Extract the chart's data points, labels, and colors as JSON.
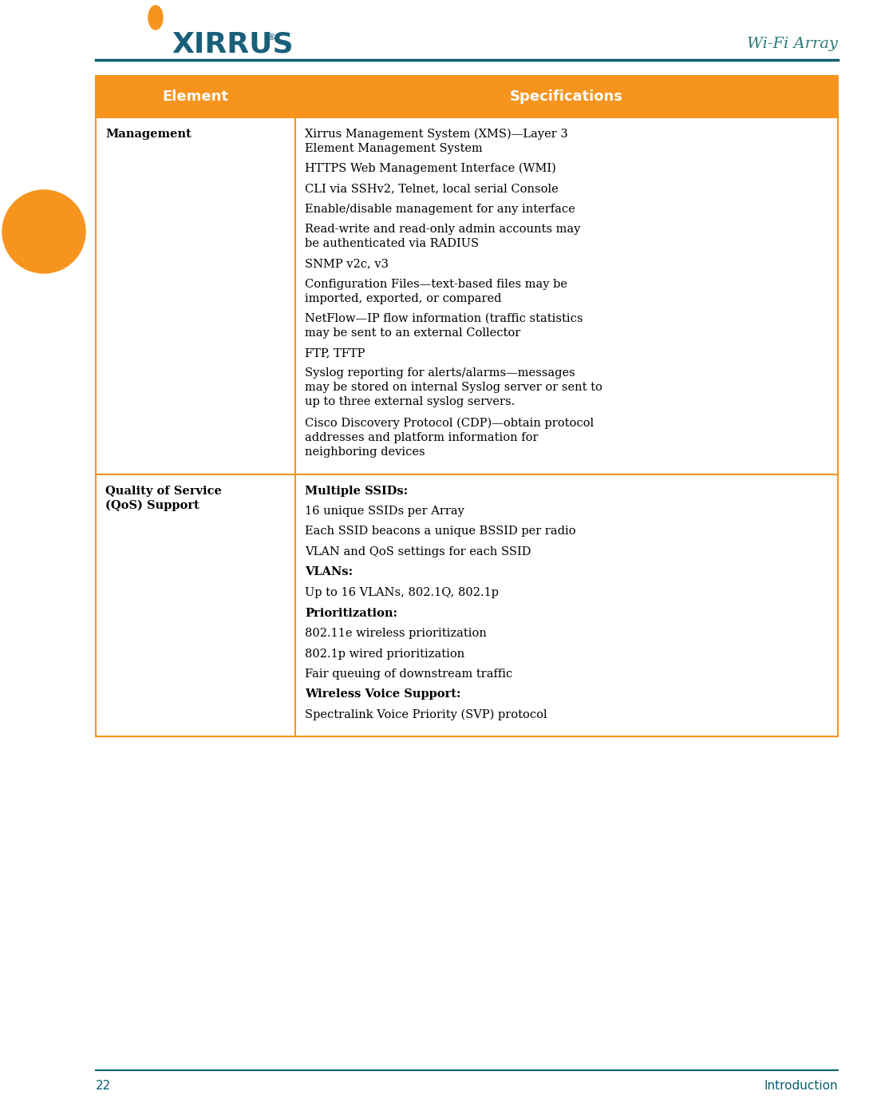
{
  "page_bg": "#ffffff",
  "header_line_color": "#0a5f6e",
  "header_text": "Wi-Fi Array",
  "header_text_color": "#2a7a7a",
  "page_number": "22",
  "footer_text": "Introduction",
  "footer_color": "#0a5f6e",
  "logo_color": "#1a5f7a",
  "orange_accent": "#f7941d",
  "table_border_color": "#f7941d",
  "table_header_bg": "#f7941d",
  "table_header_text_color": "#ffffff",
  "col1_header": "Element",
  "col2_header": "Specifications",
  "row1_label": "Management",
  "row1_specs": [
    "Xirrus Management System (XMS)—Layer 3\nElement Management System",
    "HTTPS Web Management Interface (WMI)",
    "CLI via SSHv2, Telnet, local serial Console",
    "Enable/disable management for any interface",
    "Read-write and read-only admin accounts may\nbe authenticated via RADIUS",
    "SNMP v2c, v3",
    "Configuration Files—text-based files may be\nimported, exported, or compared",
    "NetFlow—IP flow information (traffic statistics\nmay be sent to an external Collector",
    "FTP, TFTP",
    "Syslog reporting for alerts/alarms—messages\nmay be stored on internal Syslog server or sent to\nup to three external syslog servers.",
    "Cisco Discovery Protocol (CDP)—obtain protocol\naddresses and platform information for\nneighboring devices"
  ],
  "row2_label": "Quality of Service\n(QoS) Support",
  "row2_specs": [
    {
      "text": "Multiple SSIDs:",
      "bold": true
    },
    {
      "text": "16 unique SSIDs per Array",
      "bold": false
    },
    {
      "text": "Each SSID beacons a unique BSSID per radio",
      "bold": false
    },
    {
      "text": "VLAN and QoS settings for each SSID",
      "bold": false
    },
    {
      "text": "VLANs:",
      "bold": true
    },
    {
      "text": "Up to 16 VLANs, 802.1Q, 802.1p",
      "bold": false
    },
    {
      "text": "Prioritization:",
      "bold": true
    },
    {
      "text": "802.11e wireless prioritization",
      "bold": false
    },
    {
      "text": "802.1p wired prioritization",
      "bold": false
    },
    {
      "text": "Fair queuing of downstream traffic",
      "bold": false
    },
    {
      "text": "Wireless Voice Support:",
      "bold": true
    },
    {
      "text": "Spectralink Voice Priority (SVP) protocol",
      "bold": false
    }
  ],
  "text_color": "#000000",
  "table_text_size": 10.5,
  "header_font_size": 13
}
